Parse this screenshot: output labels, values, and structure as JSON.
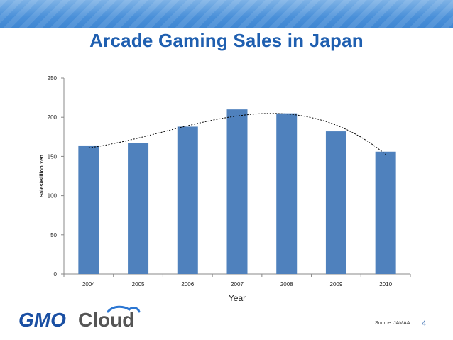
{
  "slide": {
    "title": "Arcade Gaming Sales in Japan",
    "source": "Source: JAMAA",
    "page_number": "4",
    "logo_text_left": "GMO",
    "logo_text_right": "Cloud"
  },
  "colors": {
    "title": "#1f5fb0",
    "bar": "#4f81bd",
    "band": "#4a90d9",
    "logo_blue": "#1a4fa3",
    "logo_gray": "#666666"
  },
  "chart_data": {
    "type": "bar",
    "categories": [
      "2004",
      "2005",
      "2006",
      "2007",
      "2008",
      "2009",
      "2010"
    ],
    "values": [
      164,
      167,
      188,
      210,
      205,
      182,
      156
    ],
    "trendline": "polynomial (dashed)",
    "xlabel": "Year",
    "ylabel": "Sales/Billion Yen",
    "ylim": [
      0,
      250
    ],
    "yticks": [
      0,
      50,
      100,
      150,
      200,
      250
    ],
    "grid": false,
    "legend": "none"
  }
}
